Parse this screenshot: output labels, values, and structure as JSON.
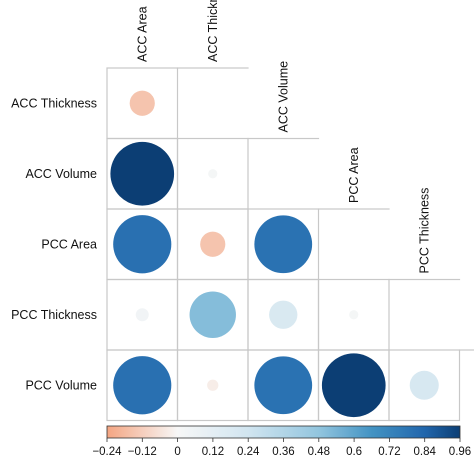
{
  "chart_data": {
    "type": "heatmap",
    "subtype": "correlation-lower-triangle-circles",
    "variables": [
      "ACC Area",
      "ACC Thickness",
      "ACC Volume",
      "PCC Area",
      "PCC Thickness",
      "PCC Volume"
    ],
    "cells": [
      {
        "row": "ACC Thickness",
        "col": "ACC Area",
        "value": -0.15
      },
      {
        "row": "ACC Volume",
        "col": "ACC Area",
        "value": 0.96
      },
      {
        "row": "ACC Volume",
        "col": "ACC Thickness",
        "value": 0.02
      },
      {
        "row": "PCC Area",
        "col": "ACC Area",
        "value": 0.8
      },
      {
        "row": "PCC Area",
        "col": "ACC Thickness",
        "value": -0.15
      },
      {
        "row": "PCC Area",
        "col": "ACC Volume",
        "value": 0.79
      },
      {
        "row": "PCC Thickness",
        "col": "ACC Area",
        "value": 0.04
      },
      {
        "row": "PCC Thickness",
        "col": "ACC Thickness",
        "value": 0.51
      },
      {
        "row": "PCC Thickness",
        "col": "ACC Volume",
        "value": 0.19
      },
      {
        "row": "PCC Thickness",
        "col": "PCC Area",
        "value": 0.02
      },
      {
        "row": "PCC Volume",
        "col": "ACC Area",
        "value": 0.8
      },
      {
        "row": "PCC Volume",
        "col": "ACC Thickness",
        "value": -0.03
      },
      {
        "row": "PCC Volume",
        "col": "ACC Volume",
        "value": 0.79
      },
      {
        "row": "PCC Volume",
        "col": "PCC Area",
        "value": 0.96
      },
      {
        "row": "PCC Volume",
        "col": "PCC Thickness",
        "value": 0.2
      }
    ],
    "colorbar": {
      "range": [
        -0.24,
        0.96
      ],
      "ticks": [
        -0.24,
        -0.12,
        0,
        0.12,
        0.24,
        0.36,
        0.48,
        0.6,
        0.72,
        0.84,
        0.96
      ],
      "tick_labels": [
        "−0.24",
        "−0.12",
        "0",
        "0.12",
        "0.24",
        "0.36",
        "0.48",
        "0.6",
        "0.72",
        "0.84",
        "0.96"
      ],
      "placement": "bottom"
    },
    "colors": {
      "negative": "#f4a582",
      "zero": "#f7f7f7",
      "positive_mid": "#4393c3",
      "positive_strong": "#053061"
    },
    "grid": true,
    "legend": "colorbar-bottom"
  }
}
